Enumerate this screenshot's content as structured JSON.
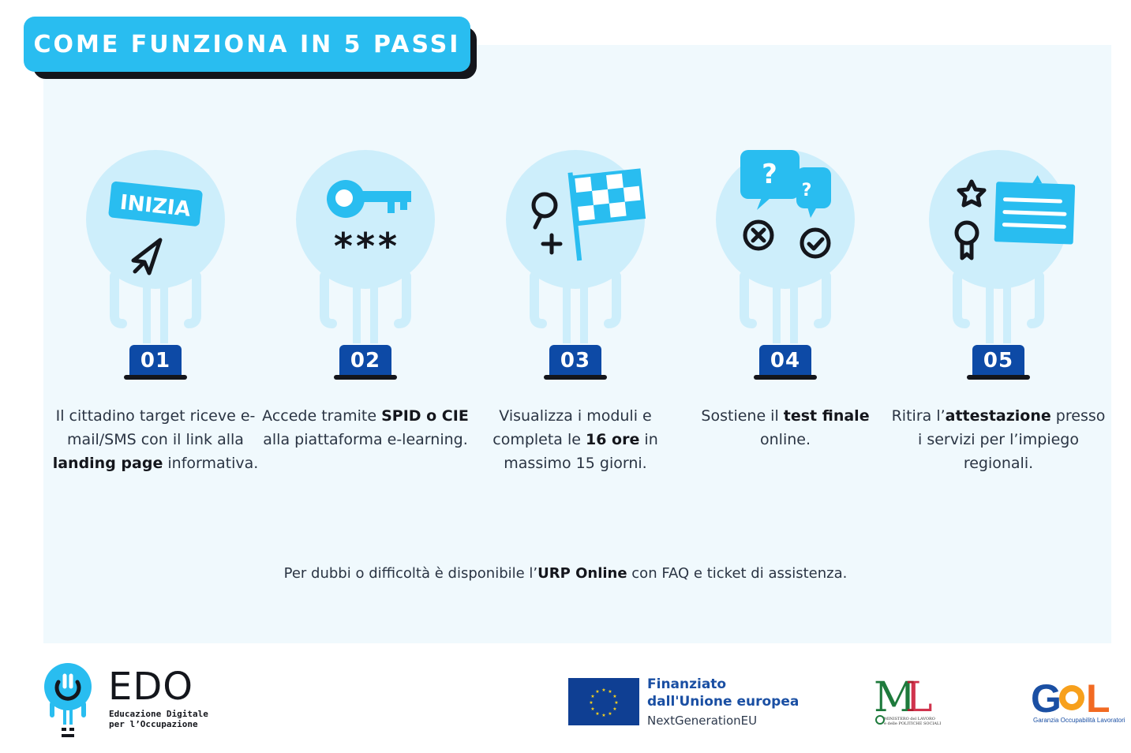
{
  "title": "COME FUNZIONA IN 5 PASSI",
  "steps": [
    {
      "number": "01",
      "icon": "launch-icon",
      "icon_label": "INIZIA",
      "desc_parts": [
        "Il cittadino target riceve e-mail/SMS con il link alla ",
        "landing page",
        " informativa."
      ]
    },
    {
      "number": "02",
      "icon": "key-password-icon",
      "icon_label": "***",
      "desc_parts": [
        "Accede tramite ",
        "SPID o CIE",
        " alla piattaforma e-learning."
      ]
    },
    {
      "number": "03",
      "icon": "checkered-flag-icon",
      "desc_parts": [
        "Visualizza i moduli e completa le ",
        "16 ore",
        " in massimo 15 giorni."
      ]
    },
    {
      "number": "04",
      "icon": "quiz-icon",
      "icon_label": "?",
      "desc_parts": [
        "Sostiene il ",
        "test finale",
        " online."
      ]
    },
    {
      "number": "05",
      "icon": "certificate-icon",
      "desc_parts": [
        "Ritira l’",
        "attestazione",
        " presso i servizi per l’impiego regionali."
      ]
    }
  ],
  "helpline": {
    "before": "Per dubbi o difficoltà è disponibile l’",
    "bold": "URP Online",
    "after": " con FAQ e ticket di assistenza."
  },
  "footer": {
    "edo": {
      "name": "EDO",
      "subtitle_line1": "Educazione Digitale",
      "subtitle_line2": "per l’Occupazione"
    },
    "eu": {
      "line1": "Finanziato",
      "line2": "dall'Unione europea",
      "line3": "NextGenerationEU"
    },
    "ministry": {
      "mark": "ML",
      "text_line1": "MINISTERO del LAVORO",
      "text_line2": "e delle POLITICHE SOCIALI"
    },
    "gol": {
      "mark": "GOL",
      "text": "Garanzia Occupabilità Lavoratori"
    }
  },
  "colors": {
    "accent": "#29bdf0",
    "badge": "#0d4aa6",
    "circle": "#cdeefb",
    "panel": "#f0f9fd",
    "dark": "#14161c"
  }
}
